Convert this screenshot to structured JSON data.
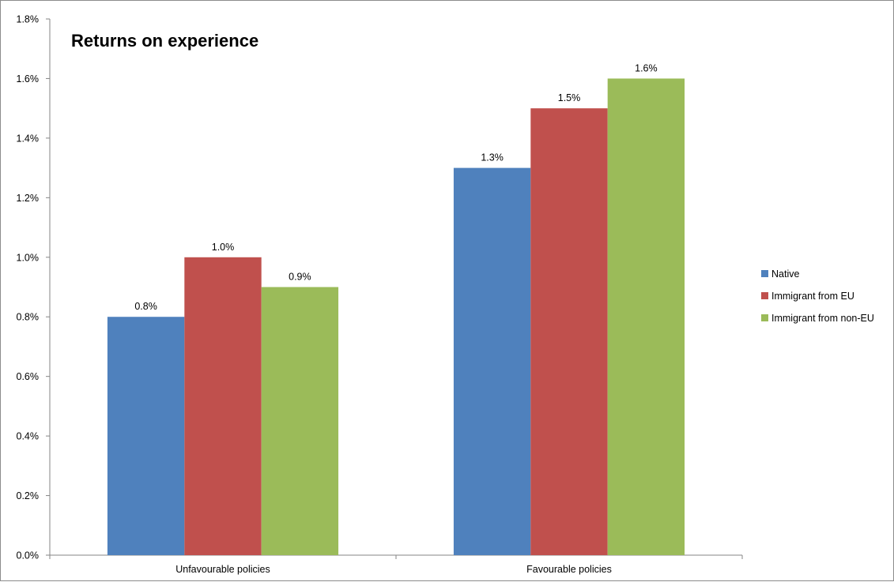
{
  "chart_data": {
    "type": "bar",
    "title": "Returns on experience",
    "xlabel": "",
    "ylabel": "",
    "categories": [
      "Unfavourable policies",
      "Favourable policies"
    ],
    "series": [
      {
        "name": "Native",
        "values": [
          0.8,
          1.3
        ],
        "labels": [
          "0.8%",
          "1.3%"
        ],
        "color": "#4f81bd"
      },
      {
        "name": "Immigrant from EU",
        "values": [
          1.0,
          1.5
        ],
        "labels": [
          "1.0%",
          "1.5%"
        ],
        "color": "#c0504d"
      },
      {
        "name": "Immigrant from non-EU",
        "values": [
          0.9,
          1.6
        ],
        "labels": [
          "0.9%",
          "1.6%"
        ],
        "color": "#9bbb59"
      }
    ],
    "ylim": [
      0,
      1.8
    ],
    "yticks": [
      0.0,
      0.2,
      0.4,
      0.6,
      0.8,
      1.0,
      1.2,
      1.4,
      1.6,
      1.8
    ],
    "ytick_labels": [
      "0.0%",
      "0.2%",
      "0.4%",
      "0.6%",
      "0.8%",
      "1.0%",
      "1.2%",
      "1.4%",
      "1.6%",
      "1.8%"
    ],
    "grid": false,
    "legend_position": "right"
  }
}
